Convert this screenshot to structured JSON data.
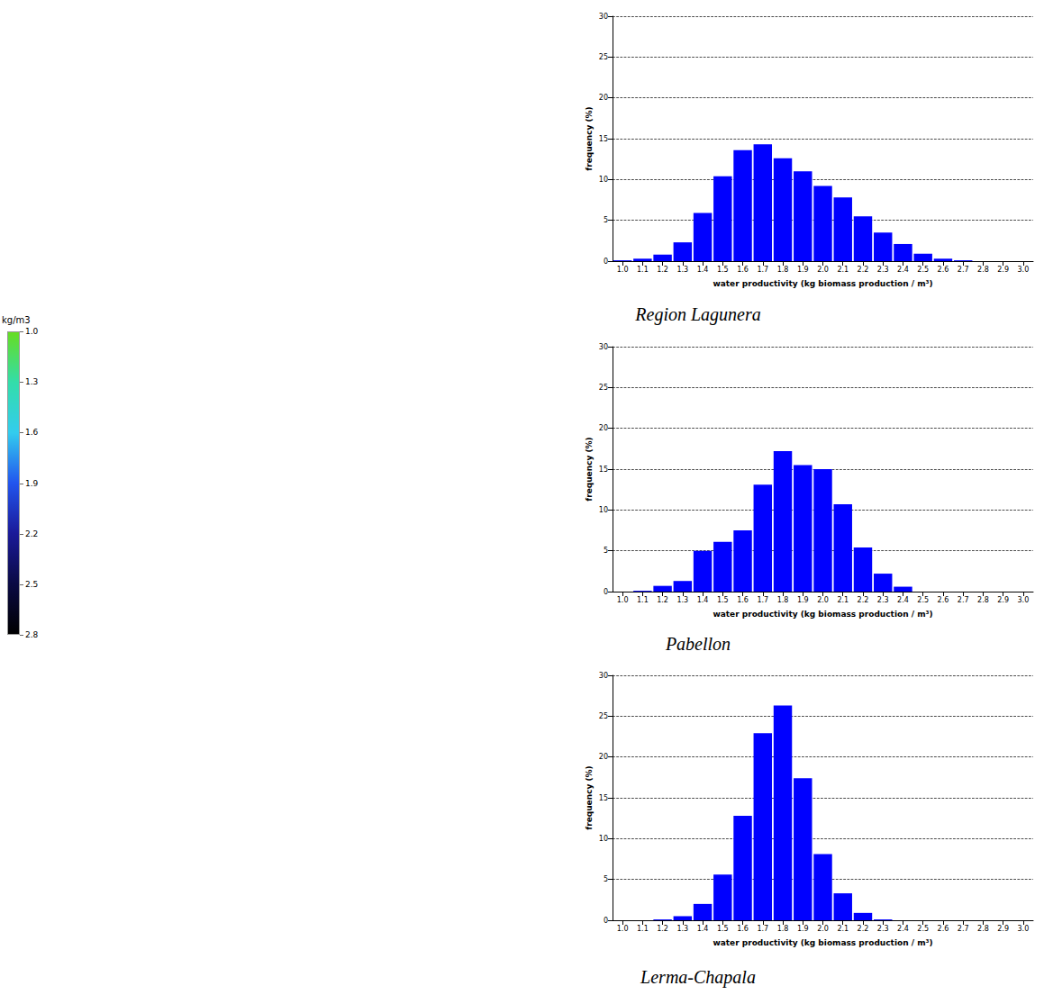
{
  "chart_data": [
    {
      "type": "bar",
      "title": "Region Lagunera",
      "categories": [
        "1.0",
        "1.1",
        "1.2",
        "1.3",
        "1.4",
        "1.5",
        "1.6",
        "1.7",
        "1.8",
        "1.9",
        "2.0",
        "2.1",
        "2.2",
        "2.3",
        "2.4",
        "2.5",
        "2.6",
        "2.7",
        "2.8",
        "2.9",
        "3.0"
      ],
      "values": [
        0.1,
        0.3,
        0.8,
        2.3,
        5.9,
        10.4,
        13.6,
        14.3,
        12.6,
        11.0,
        9.2,
        7.8,
        5.5,
        3.5,
        2.1,
        0.9,
        0.3,
        0.1,
        0,
        0,
        0
      ],
      "color": "#0000ff",
      "x_label": "water productivity (kg biomass production / m³)",
      "y_label": "frequency (%)",
      "ylim": [
        0,
        30
      ],
      "yticks": [
        0,
        5,
        10,
        15,
        20,
        25,
        30
      ],
      "grid": true
    },
    {
      "type": "bar",
      "title": "Pabellon",
      "categories": [
        "1.0",
        "1.1",
        "1.2",
        "1.3",
        "1.4",
        "1.5",
        "1.6",
        "1.7",
        "1.8",
        "1.9",
        "2.0",
        "2.1",
        "2.2",
        "2.3",
        "2.4",
        "2.5",
        "2.6",
        "2.7",
        "2.8",
        "2.9",
        "3.0"
      ],
      "values": [
        0,
        0.1,
        0.7,
        1.3,
        5.0,
        6.1,
        7.5,
        13.1,
        17.2,
        15.5,
        15.0,
        10.7,
        5.4,
        2.2,
        0.6,
        0,
        0,
        0,
        0,
        0,
        0
      ],
      "color": "#0000ff",
      "x_label": "water productivity (kg biomass production / m³)",
      "y_label": "frequency (%)",
      "ylim": [
        0,
        30
      ],
      "yticks": [
        0,
        5,
        10,
        15,
        20,
        25,
        30
      ],
      "grid": true
    },
    {
      "type": "bar",
      "title": "Lerma-Chapala",
      "categories": [
        "1.0",
        "1.1",
        "1.2",
        "1.3",
        "1.4",
        "1.5",
        "1.6",
        "1.7",
        "1.8",
        "1.9",
        "2.0",
        "2.1",
        "2.2",
        "2.3",
        "2.4",
        "2.5",
        "2.6",
        "2.7",
        "2.8",
        "2.9",
        "3.0"
      ],
      "values": [
        0,
        0,
        0.1,
        0.5,
        2.0,
        5.6,
        12.8,
        22.9,
        26.3,
        17.4,
        8.1,
        3.3,
        0.9,
        0.1,
        0,
        0,
        0,
        0,
        0,
        0,
        0
      ],
      "color": "#0000ff",
      "x_label": "water productivity (kg biomass production / m³)",
      "y_label": "frequency (%)",
      "ylim": [
        0,
        30
      ],
      "yticks": [
        0,
        5,
        10,
        15,
        20,
        25,
        30
      ],
      "grid": true
    }
  ],
  "colorbar": {
    "title": "kg/m3",
    "range": [
      1.0,
      2.8
    ],
    "ticks": [
      {
        "value": 1.0,
        "label": "1.0"
      },
      {
        "value": 1.3,
        "label": "1.3"
      },
      {
        "value": 1.6,
        "label": "1.6"
      },
      {
        "value": 1.9,
        "label": "1.9"
      },
      {
        "value": 2.2,
        "label": "2.2"
      },
      {
        "value": 2.5,
        "label": "2.5"
      },
      {
        "value": 2.8,
        "label": "2.8"
      }
    ],
    "colors": [
      "#66dd22",
      "#33ddaa",
      "#33ccee",
      "#2255ee",
      "#1a1a99",
      "#0a0a44",
      "#000000"
    ]
  }
}
